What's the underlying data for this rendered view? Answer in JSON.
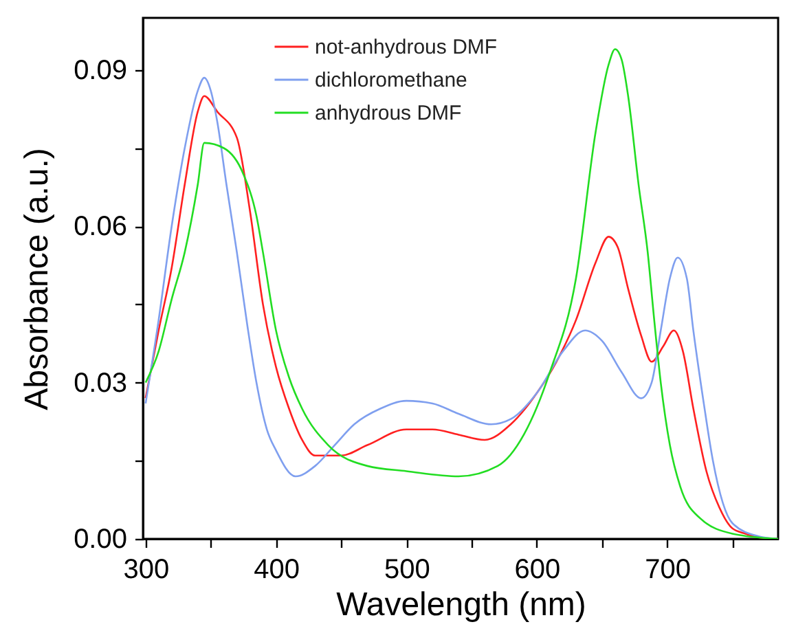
{
  "chart_data": {
    "type": "line",
    "xlabel": "Wavelength (nm)",
    "ylabel": "Absorbance (a.u.)",
    "xlim": [
      298,
      785
    ],
    "ylim": [
      0,
      0.1
    ],
    "xticks": [
      300,
      {
        "value": 350,
        "label": null
      },
      400,
      {
        "value": 450,
        "label": null
      },
      500,
      {
        "value": 550,
        "label": null
      },
      600,
      {
        "value": 650,
        "label": null
      },
      700,
      {
        "value": 750,
        "label": null
      }
    ],
    "yticks": [
      {
        "value": 0,
        "label": "0.00"
      },
      {
        "value": 0.015,
        "label": null
      },
      0.03,
      {
        "value": 0.045,
        "label": null
      },
      0.06,
      {
        "value": 0.075,
        "label": null
      },
      0.09
    ],
    "grid": false,
    "legend": "top",
    "line_style": "solid",
    "marker": "none",
    "series": [
      {
        "name": "not-anhydrous DMF",
        "color": "#ff2020",
        "x": [
          300,
          310,
          320,
          330,
          340,
          345,
          355,
          370,
          380,
          390,
          400,
          410,
          420,
          430,
          450,
          470,
          500,
          520,
          540,
          560,
          580,
          600,
          615,
          630,
          645,
          655,
          662,
          670,
          680,
          688,
          697,
          705,
          712,
          720,
          730,
          740,
          750,
          760,
          770,
          785
        ],
        "values": [
          0.027,
          0.04,
          0.052,
          0.068,
          0.082,
          0.085,
          0.082,
          0.077,
          0.063,
          0.045,
          0.033,
          0.025,
          0.019,
          0.016,
          0.016,
          0.018,
          0.021,
          0.021,
          0.02,
          0.019,
          0.022,
          0.028,
          0.034,
          0.042,
          0.053,
          0.058,
          0.056,
          0.048,
          0.039,
          0.034,
          0.037,
          0.04,
          0.036,
          0.025,
          0.013,
          0.006,
          0.002,
          0.001,
          0.0003,
          0
        ]
      },
      {
        "name": "dichloromethane",
        "color": "#7f9fef",
        "x": [
          300,
          310,
          320,
          330,
          340,
          345,
          350,
          355,
          362,
          370,
          378,
          385,
          393,
          400,
          415,
          430,
          445,
          460,
          480,
          500,
          520,
          540,
          565,
          580,
          600,
          620,
          637,
          650,
          665,
          680,
          688,
          695,
          702,
          708,
          715,
          720,
          728,
          735,
          750,
          770,
          785
        ],
        "values": [
          0.026,
          0.042,
          0.06,
          0.075,
          0.086,
          0.0885,
          0.086,
          0.08,
          0.068,
          0.055,
          0.041,
          0.03,
          0.021,
          0.017,
          0.012,
          0.014,
          0.018,
          0.022,
          0.025,
          0.0265,
          0.026,
          0.024,
          0.022,
          0.023,
          0.028,
          0.036,
          0.04,
          0.038,
          0.032,
          0.027,
          0.03,
          0.04,
          0.05,
          0.054,
          0.05,
          0.04,
          0.026,
          0.015,
          0.003,
          0.0005,
          0
        ]
      },
      {
        "name": "anhydrous DMF",
        "color": "#22dd22",
        "x": [
          300,
          310,
          320,
          330,
          340,
          345,
          360,
          375,
          385,
          390,
          400,
          410,
          420,
          440,
          470,
          500,
          540,
          570,
          590,
          610,
          630,
          645,
          655,
          660,
          665,
          670,
          678,
          685,
          690,
          695,
          702,
          710,
          725,
          750,
          785
        ],
        "values": [
          0.03,
          0.036,
          0.046,
          0.055,
          0.068,
          0.076,
          0.075,
          0.07,
          0.062,
          0.055,
          0.04,
          0.031,
          0.025,
          0.018,
          0.014,
          0.013,
          0.012,
          0.014,
          0.02,
          0.032,
          0.05,
          0.078,
          0.091,
          0.094,
          0.092,
          0.085,
          0.068,
          0.055,
          0.042,
          0.03,
          0.018,
          0.01,
          0.004,
          0.001,
          0
        ]
      }
    ]
  }
}
